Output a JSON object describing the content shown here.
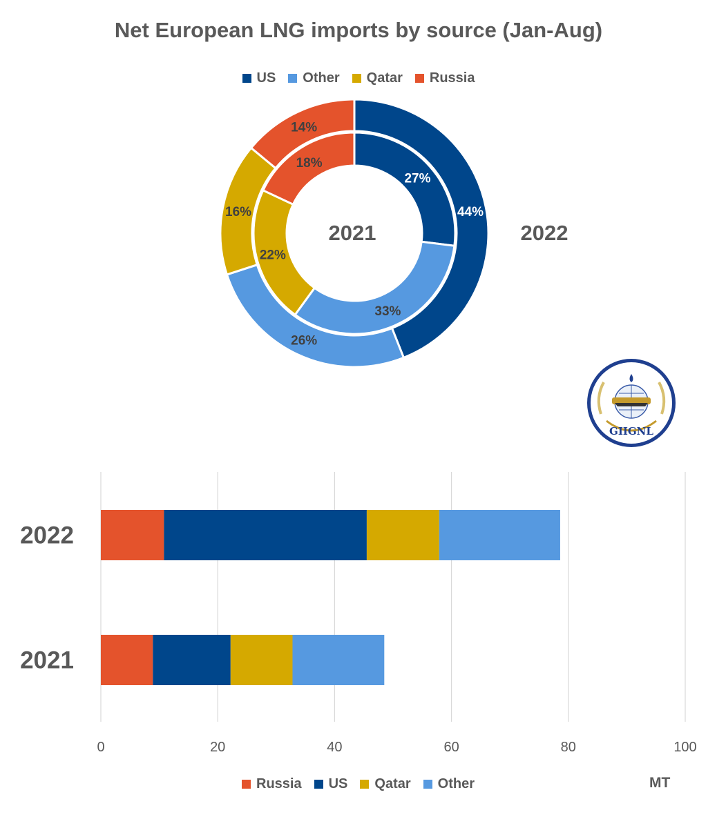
{
  "chart_data": [
    {
      "type": "doughnut",
      "title": "Net European LNG imports by source (Jan-Aug)",
      "legend": [
        "US",
        "Other",
        "Qatar",
        "Russia"
      ],
      "rings": [
        {
          "name": "2021",
          "position": "inner",
          "slices": [
            {
              "name": "US",
              "value": 27
            },
            {
              "name": "Other",
              "value": 33
            },
            {
              "name": "Qatar",
              "value": 22
            },
            {
              "name": "Russia",
              "value": 18
            }
          ]
        },
        {
          "name": "2022",
          "position": "outer",
          "slices": [
            {
              "name": "US",
              "value": 44
            },
            {
              "name": "Other",
              "value": 26
            },
            {
              "name": "Qatar",
              "value": 16
            },
            {
              "name": "Russia",
              "value": 14
            }
          ]
        }
      ],
      "ring_labels": {
        "inner": "2021",
        "outer": "2022"
      },
      "value_suffix": "%"
    },
    {
      "type": "bar",
      "orientation": "horizontal",
      "stacked": true,
      "categories": [
        "2022",
        "2021"
      ],
      "series": [
        {
          "name": "Russia",
          "values": [
            10.8,
            8.9
          ]
        },
        {
          "name": "US",
          "values": [
            34.7,
            13.3
          ]
        },
        {
          "name": "Qatar",
          "values": [
            12.4,
            10.6
          ]
        },
        {
          "name": "Other",
          "values": [
            20.7,
            15.7
          ]
        }
      ],
      "xlim": [
        0,
        100
      ],
      "xticks": [
        0,
        20,
        40,
        60,
        80,
        100
      ],
      "xlabel": "MT",
      "legend": [
        "Russia",
        "US",
        "Qatar",
        "Other"
      ],
      "grid": true
    }
  ],
  "colors": {
    "US": "#00468B",
    "Other": "#5699E0",
    "Qatar": "#D5A900",
    "Russia": "#E4532C"
  },
  "logo": {
    "text": "GIIGNL"
  }
}
